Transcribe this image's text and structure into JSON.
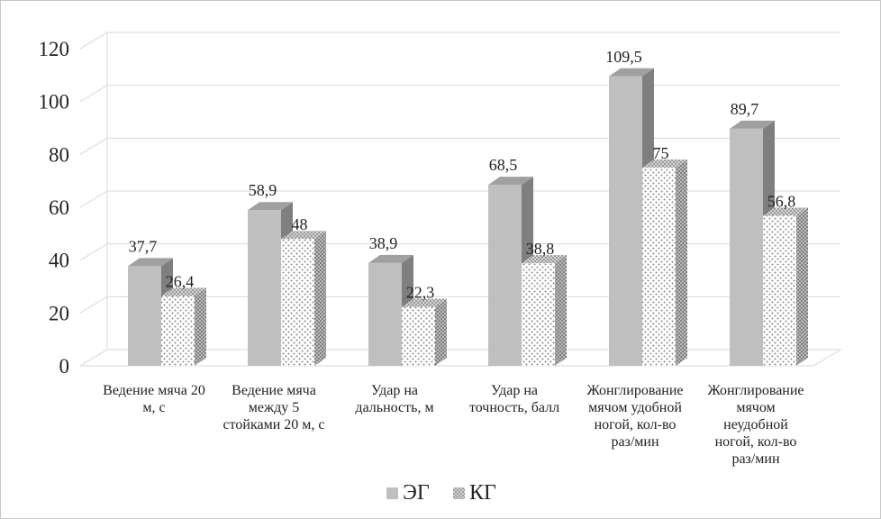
{
  "chart_data": {
    "type": "bar",
    "variant": "3d-clustered-column",
    "title": "",
    "xlabel": "",
    "ylabel": "",
    "ylim": [
      0,
      120
    ],
    "yticks": [
      0,
      20,
      40,
      60,
      80,
      100,
      120
    ],
    "grid": true,
    "legend_position": "bottom",
    "categories": [
      [
        "Ведение мяча 20",
        "м, с"
      ],
      [
        "Ведение мяча",
        "между 5",
        "стойками 20 м, с"
      ],
      [
        "Удар на",
        "дальность, м"
      ],
      [
        "Удар на",
        "точность, балл"
      ],
      [
        "Жонглирование",
        "мячом удобной",
        "ногой, кол-во",
        "раз/мин"
      ],
      [
        "Жонглирование",
        "мячом",
        "неудобной",
        "ногой, кол-во",
        "раз/мин"
      ]
    ],
    "series": [
      {
        "name": "ЭГ",
        "pattern": "solid-gray",
        "values": [
          37.7,
          58.9,
          38.9,
          68.5,
          109.5,
          89.7
        ],
        "labels": [
          "37,7",
          "58,9",
          "38,9",
          "68,5",
          "109,5",
          "89,7"
        ]
      },
      {
        "name": "КГ",
        "pattern": "dotted",
        "values": [
          26.4,
          48,
          22.3,
          38.8,
          75,
          56.8
        ],
        "labels": [
          "26,4",
          "48",
          "22,3",
          "38,8",
          "75",
          "56,8"
        ]
      }
    ],
    "colors": {
      "eg_front": "#bfbfbf",
      "eg_top": "#a0a0a0",
      "eg_side": "#7f7f7f",
      "kg_dot": "#8a8a8a",
      "grid": "#d9d9d9"
    }
  }
}
